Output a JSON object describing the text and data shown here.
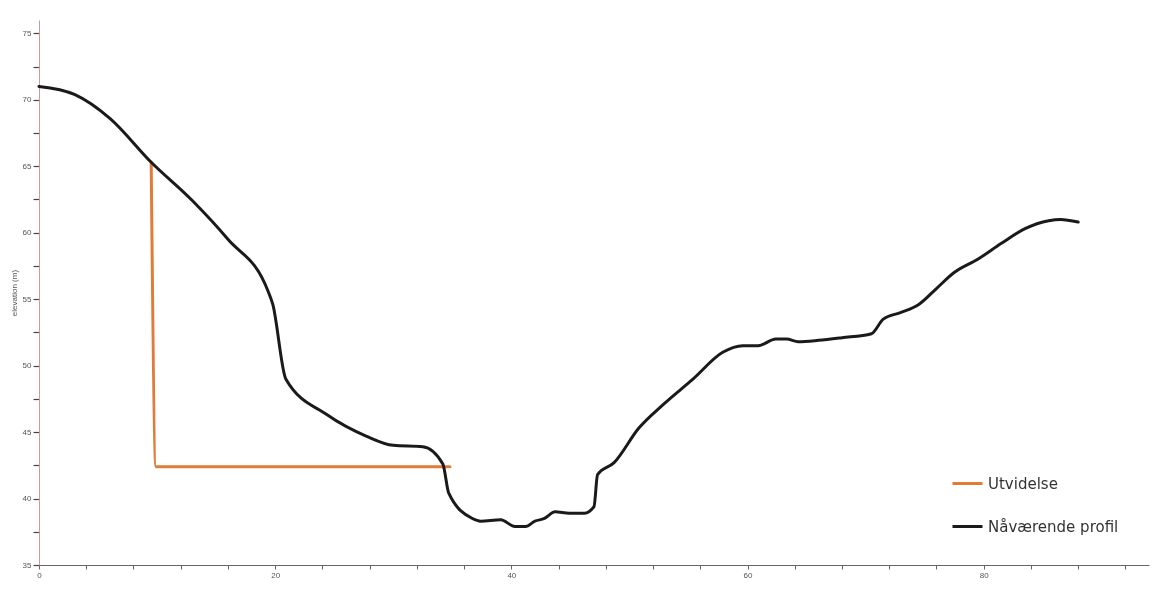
{
  "chart_data": {
    "type": "line",
    "ylabel": "elevation (m)",
    "xlim": [
      0,
      94
    ],
    "ylim": [
      35,
      76
    ],
    "xticks": [
      0,
      {
        "value": 4,
        "label": null
      },
      {
        "value": 8,
        "label": null
      },
      {
        "value": 12,
        "label": null
      },
      {
        "value": 16,
        "label": null
      },
      20,
      {
        "value": 24,
        "label": null
      },
      {
        "value": 28,
        "label": null
      },
      {
        "value": 32,
        "label": null
      },
      {
        "value": 36,
        "label": null
      },
      40,
      {
        "value": 44,
        "label": null
      },
      {
        "value": 48,
        "label": null
      },
      {
        "value": 52,
        "label": null
      },
      {
        "value": 56,
        "label": null
      },
      60,
      {
        "value": 64,
        "label": null
      },
      {
        "value": 68,
        "label": null
      },
      {
        "value": 72,
        "label": null
      },
      {
        "value": 76,
        "label": null
      },
      80,
      {
        "value": 84,
        "label": null
      },
      {
        "value": 88,
        "label": null
      },
      {
        "value": 92,
        "label": null
      }
    ],
    "yticks": [
      35,
      {
        "value": 37.5,
        "label": null
      },
      40,
      {
        "value": 42.5,
        "label": null
      },
      45,
      {
        "value": 47.5,
        "label": null
      },
      50,
      {
        "value": 52.5,
        "label": null
      },
      55,
      {
        "value": 57.5,
        "label": null
      },
      60,
      {
        "value": 62.5,
        "label": null
      },
      65,
      {
        "value": 67.5,
        "label": null
      },
      70,
      {
        "value": 72.5,
        "label": null
      },
      75
    ],
    "grid": false,
    "legend": "bottom right",
    "line_style": "solid",
    "marker": "none",
    "series": [
      {
        "name": "Utvidelse",
        "color": "#e07b39",
        "x": [
          9.5,
          9.9,
          34.8
        ],
        "values": [
          65.3,
          42.4,
          42.4
        ]
      },
      {
        "name": "Nåværende profil",
        "color": "#1a1a1a",
        "x": [
          0,
          3,
          6,
          9.5,
          13,
          16,
          19.4,
          19.8,
          20.9,
          24.4,
          27.7,
          30,
          32.5,
          34.2,
          34.7,
          36.7,
          37.4,
          39.1,
          40.3,
          41.2,
          42,
          42.8,
          43.7,
          44.9,
          46.2,
          47,
          47.3,
          48.7,
          50.8,
          52.9,
          55.4,
          57.9,
          59.6,
          60.9,
          62.4,
          63.3,
          64.3,
          66,
          68,
          70.5,
          71.5,
          73,
          74.5,
          76,
          77.5,
          79.5,
          81.5,
          83.5,
          85.5,
          86.5,
          88
        ],
        "values": [
          71,
          70.4,
          68.6,
          65.3,
          62.4,
          59.5,
          55.6,
          54.6,
          49,
          46.3,
          44.7,
          44,
          43.9,
          42.6,
          40.4,
          38.5,
          38.3,
          38.4,
          37.9,
          37.9,
          38.3,
          38.5,
          39,
          38.9,
          38.9,
          39.4,
          41.8,
          42.7,
          45.3,
          47.1,
          49,
          51,
          51.5,
          51.5,
          52,
          52,
          51.8,
          51.9,
          52.1,
          52.4,
          53.5,
          54,
          54.6,
          55.8,
          57,
          58,
          59.2,
          60.3,
          60.9,
          61,
          60.8
        ]
      }
    ]
  }
}
